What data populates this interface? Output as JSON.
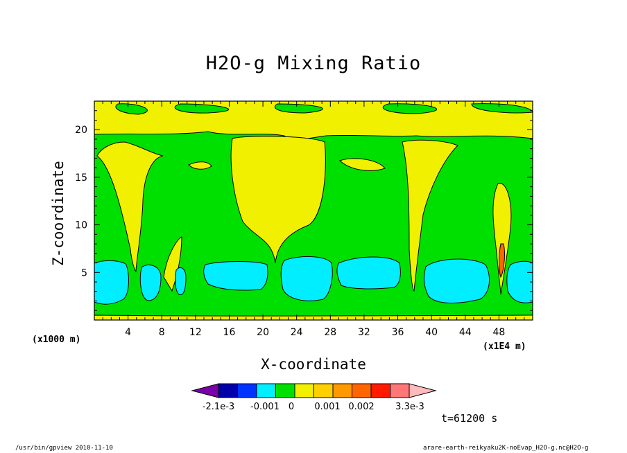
{
  "chart_data": {
    "type": "heatmap",
    "title": "H2O-g Mixing Ratio",
    "xlabel": "X-coordinate",
    "ylabel": "Z-coordinate",
    "x_unit_left": "(x1000 m)",
    "x_unit_right": "(x1E4 m)",
    "xlim": [
      0,
      52
    ],
    "ylim": [
      0,
      23
    ],
    "x_ticks": [
      4,
      8,
      12,
      16,
      20,
      24,
      28,
      32,
      36,
      40,
      44,
      48
    ],
    "y_ticks": [
      5,
      10,
      15,
      20
    ],
    "time_label": "t=61200 s",
    "colorbar": {
      "labels": [
        "-2.1e-3",
        "-0.001",
        "0",
        "0.001",
        "0.002",
        "3.3e-3"
      ],
      "colors": [
        "#7a00a8",
        "#0000aa",
        "#0033ff",
        "#00eeff",
        "#00e000",
        "#f0f000",
        "#ffd000",
        "#ff9900",
        "#ff6600",
        "#ff1a00",
        "#ff7777",
        "#ffbbbb"
      ]
    },
    "regions": {
      "background_level": "#00e000",
      "upper_band": "#f0f000",
      "plumes": "#f0f000",
      "low_level_cells": "#00eeff",
      "max_core": "#ff6600"
    }
  },
  "footer": {
    "left": "/usr/bin/gpview   2010-11-10",
    "right": "arare-earth-reikyaku2K-noEvap_H2O-g.nc@H2O-g"
  }
}
